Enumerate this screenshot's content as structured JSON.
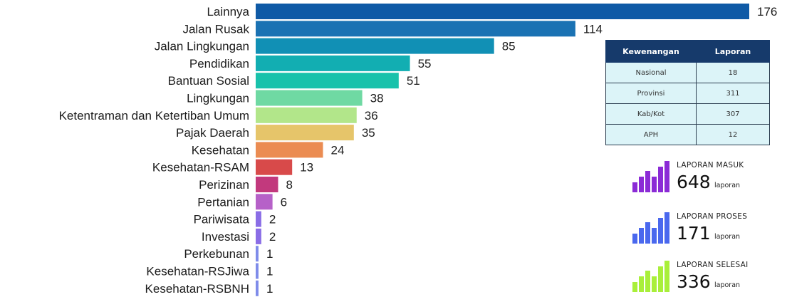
{
  "chart_data": {
    "type": "bar",
    "orientation": "horizontal",
    "categories": [
      "Lainnya",
      "Jalan Rusak",
      "Jalan Lingkungan",
      "Pendidikan",
      "Bantuan Sosial",
      "Lingkungan",
      "Ketentraman dan Ketertiban Umum",
      "Pajak Daerah",
      "Kesehatan",
      "Kesehatan-RSAM",
      "Perizinan",
      "Pertanian",
      "Pariwisata",
      "Investasi",
      "Perkebunan",
      "Kesehatan-RSJiwa",
      "Kesehatan-RSBNH"
    ],
    "values": [
      176,
      114,
      85,
      55,
      51,
      38,
      36,
      35,
      24,
      13,
      8,
      6,
      2,
      2,
      1,
      1,
      1
    ],
    "colors": [
      "#0f5aa6",
      "#1a72b3",
      "#1190b5",
      "#12aeb2",
      "#19c2ab",
      "#6fd9a3",
      "#b2e68a",
      "#e6c56a",
      "#eb8c52",
      "#d84a4a",
      "#c2397d",
      "#b661c8",
      "#8a6de6",
      "#8a6de6",
      "#7f8cea",
      "#7f8cea",
      "#7f8cea"
    ],
    "xlim": [
      0,
      176
    ]
  },
  "authority_table": {
    "headers": [
      "Kewenangan",
      "Laporan"
    ],
    "rows": [
      [
        "Nasional",
        "18"
      ],
      [
        "Provinsi",
        "311"
      ],
      [
        "Kab/Kot",
        "307"
      ],
      [
        "APH",
        "12"
      ]
    ]
  },
  "stats": [
    {
      "title": "LAPORAN MASUK",
      "value": "648",
      "unit": "laporan",
      "color": "#8b2bd6"
    },
    {
      "title": "LAPORAN PROSES",
      "value": "171",
      "unit": "laporan",
      "color": "#4a68ee"
    },
    {
      "title": "LAPORAN SELESAI",
      "value": "336",
      "unit": "laporan",
      "color": "#a9ef3a"
    }
  ]
}
